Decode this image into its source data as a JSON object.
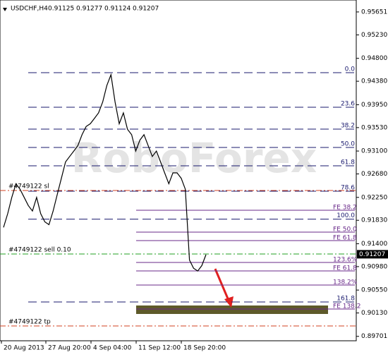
{
  "header": {
    "symbol": "USDCHF,H4",
    "quotes": [
      "0.91125",
      "0.91277",
      "0.91124",
      "0.91207"
    ]
  },
  "watermark": "RoboForex",
  "current_price": {
    "value": 0.91207,
    "label": "0.91207"
  },
  "chart_data": {
    "type": "line",
    "color": "#000000",
    "ylim": [
      0.8962,
      0.9587
    ],
    "yticks": [
      0.95651,
      {
        "value": 0.9523,
        "label": "0.95230"
      },
      {
        "value": 0.948,
        "label": "0.94800"
      },
      {
        "value": 0.9438,
        "label": "0.94380"
      },
      {
        "value": 0.9395,
        "label": "0.93950"
      },
      {
        "value": 0.9353,
        "label": "0.93530"
      },
      {
        "value": 0.931,
        "label": "0.93100"
      },
      {
        "value": 0.9268,
        "label": "0.92680"
      },
      {
        "value": 0.9225,
        "label": "0.92250"
      },
      {
        "value": 0.9183,
        "label": "0.91830"
      },
      {
        "value": 0.914,
        "label": "0.91400"
      },
      {
        "value": 0.9098,
        "label": "0.90980"
      },
      {
        "value": 0.9055,
        "label": "0.90550"
      },
      {
        "value": 0.9013,
        "label": "0.90130"
      },
      0.89701
    ],
    "x_labels": [
      "20 Aug 2013",
      "27 Aug 20:00",
      "4 Sep 04:00",
      "11 Sep 12:00",
      "18 Sep 20:00"
    ],
    "values": [
      0.917,
      0.9195,
      0.9225,
      0.925,
      0.924,
      0.9225,
      0.921,
      0.92,
      0.9225,
      0.9195,
      0.918,
      0.9175,
      0.92,
      0.923,
      0.926,
      0.929,
      0.93,
      0.931,
      0.932,
      0.934,
      0.9355,
      0.936,
      0.937,
      0.938,
      0.94,
      0.943,
      0.945,
      0.94,
      0.936,
      0.938,
      0.935,
      0.934,
      0.931,
      0.933,
      0.934,
      0.932,
      0.93,
      0.931,
      0.929,
      0.927,
      0.925,
      0.927,
      0.927,
      0.926,
      0.924,
      0.911,
      0.9095,
      0.909,
      0.91,
      0.912
    ],
    "fib_retracement": [
      {
        "label": "0.0",
        "value": 0.94537
      },
      {
        "label": "23.6",
        "value": 0.93903
      },
      {
        "label": "38.2",
        "value": 0.93502
      },
      {
        "label": "50.0",
        "value": 0.93166
      },
      {
        "label": "61.8",
        "value": 0.92829
      },
      {
        "label": "78.6",
        "value": 0.92363
      },
      {
        "label": "100.0",
        "value": 0.9185
      },
      {
        "label": "161.8",
        "value": 0.90332
      }
    ],
    "fib_expansion": [
      {
        "label": "FE 38.2",
        "value": 0.92014
      },
      {
        "label": "FE 50.0",
        "value": 0.91613
      },
      {
        "label": "FE 61.8",
        "value": 0.91457
      },
      {
        "label": "123.6%",
        "value": 0.91056
      },
      {
        "label": "FE 61.8",
        "value": 0.90901
      },
      {
        "label": "138.2%",
        "value": 0.90642
      },
      {
        "label": "FE 138.2",
        "value": 0.90202
      }
    ],
    "orders": [
      {
        "label": "#4749122 sl",
        "value": 0.92376,
        "color": "#d04020"
      },
      {
        "label": "#4749122 sell 0.10",
        "value": 0.91212,
        "color": "#20a020"
      },
      {
        "label": "#4749122 tp",
        "value": 0.89892,
        "color": "#d04020"
      }
    ]
  }
}
